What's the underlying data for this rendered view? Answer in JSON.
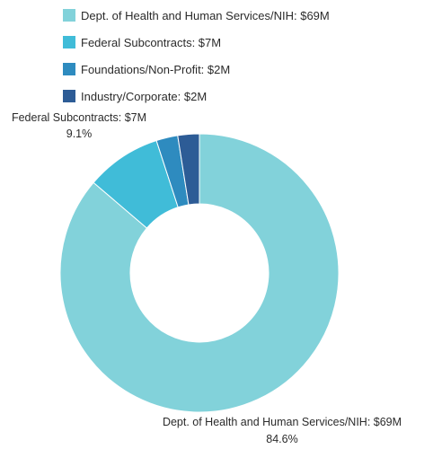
{
  "chart_data": {
    "type": "pie",
    "variant": "donut",
    "legend_position": "top-left",
    "series": [
      {
        "name": "",
        "slices": [
          {
            "label": "Dept. of Health and Human Services/NIH: $69M",
            "value": 69,
            "percent_label": "84.6%",
            "color": "#82D2DA"
          },
          {
            "label": "Federal Subcontracts: $7M",
            "value": 7,
            "percent_label": "9.1%",
            "color": "#40BCD8"
          },
          {
            "label": "Foundations/Non-Profit: $2M",
            "value": 2,
            "percent_label": "",
            "color": "#2E8BBF"
          },
          {
            "label": "Industry/Corporate: $2M",
            "value": 2,
            "percent_label": "",
            "color": "#2D5C96"
          }
        ]
      }
    ]
  }
}
